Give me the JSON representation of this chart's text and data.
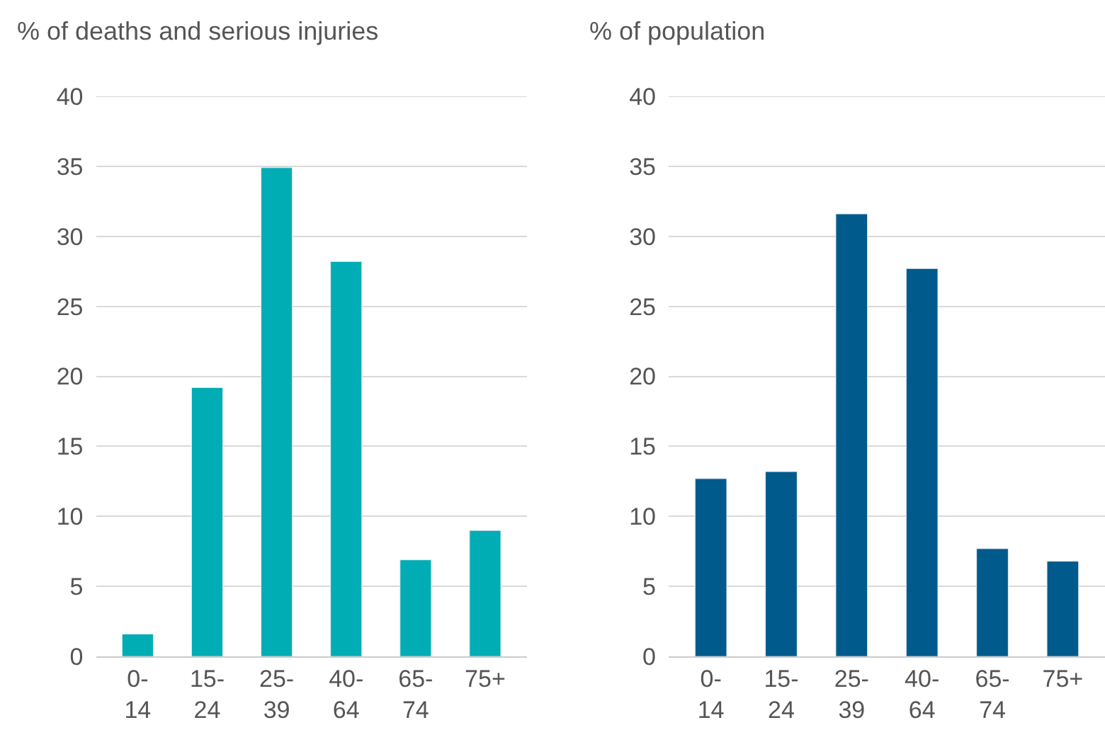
{
  "chart_data": [
    {
      "type": "bar",
      "title": "% of deaths and serious injuries",
      "categories": [
        "0-\n14",
        "15-\n24",
        "25-\n39",
        "40-\n64",
        "65-\n74",
        "75+"
      ],
      "values": [
        1.6,
        19.2,
        34.9,
        28.2,
        6.9,
        9.0
      ],
      "color": "#00adb5",
      "ylim": [
        0,
        40
      ],
      "yticks": [
        0,
        5,
        10,
        15,
        20,
        25,
        30,
        35,
        40
      ],
      "grid": "y"
    },
    {
      "type": "bar",
      "title": "% of population",
      "categories": [
        "0-\n14",
        "15-\n24",
        "25-\n39",
        "40-\n64",
        "65-\n74",
        "75+"
      ],
      "values": [
        12.7,
        13.2,
        31.6,
        27.7,
        7.7,
        6.8
      ],
      "color": "#005a8c",
      "ylim": [
        0,
        40
      ],
      "yticks": [
        0,
        5,
        10,
        15,
        20,
        25,
        30,
        35,
        40
      ],
      "grid": "y"
    }
  ]
}
